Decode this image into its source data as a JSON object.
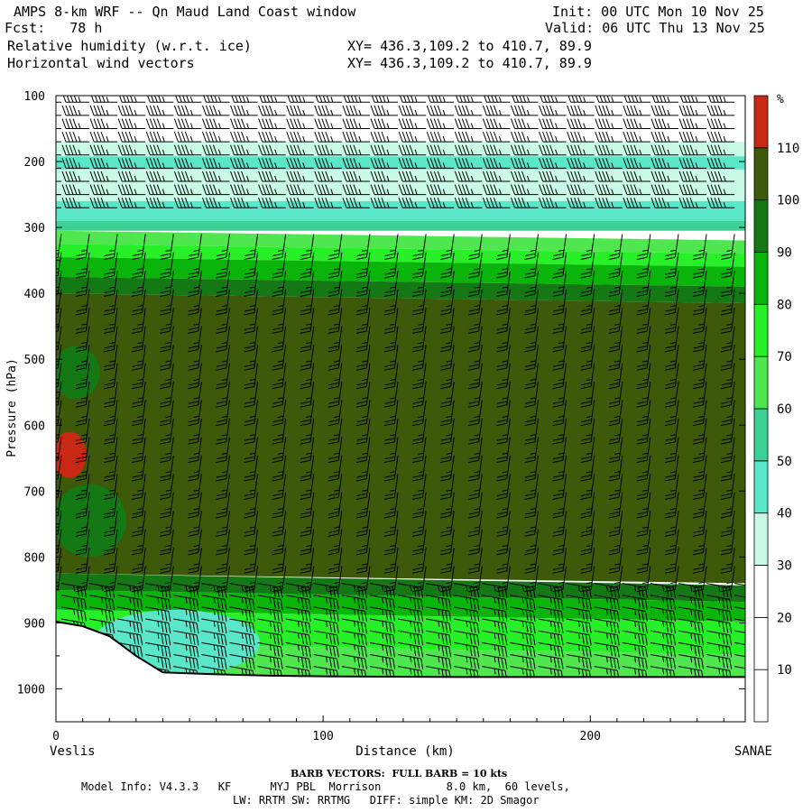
{
  "header": {
    "title": "AMPS 8-km WRF -- Qn Maud Land Coast window",
    "forecast": "Fcst:   78 h",
    "field_1": "Relative humidity (w.r.t. ice)",
    "field_2": "Horizontal wind vectors",
    "init": "Init: 00 UTC Mon 10 Nov 25",
    "valid": "Valid: 06 UTC Thu 13 Nov 25",
    "xy_1": "XY= 436.3,109.2 to 410.7, 89.9",
    "xy_2": "XY= 436.3,109.2 to 410.7, 89.9"
  },
  "footer": {
    "barb_note": "BARB VECTORS:  FULL BARB = 10 kts",
    "model_info": "Model Info: V4.3.3   KF      MYJ PBL  Morrison          8.0 km,  60 levels,",
    "physics": "LW: RRTM SW: RRTMG   DIFF: simple KM: 2D Smagor"
  },
  "colors": {
    "rh_10_20": "#ffffff",
    "rh_20_30": "#ffffff",
    "rh_30_40": "#c8fae6",
    "rh_40_50": "#5ae6c8",
    "rh_50_60": "#3cd296",
    "rh_60_70": "#50e650",
    "rh_70_80": "#28f028",
    "rh_80_90": "#0ab40a",
    "rh_90_100": "#147814",
    "rh_100_110": "#3c5a0a",
    "rh_above_110": "#c82814",
    "terrain": "#ffffff",
    "axis": "#000000"
  },
  "chart_data": {
    "type": "heatmap",
    "title": "Relative humidity (w.r.t. ice) cross-section with horizontal wind barbs",
    "xlabel": "Distance (km)",
    "ylabel": "Pressure (hPa)",
    "x_range": [
      0,
      258
    ],
    "y_range": [
      100,
      1050
    ],
    "y_inverted": true,
    "x_ticks": [
      0,
      100,
      200
    ],
    "y_ticks": [
      100,
      200,
      300,
      400,
      500,
      600,
      700,
      800,
      900,
      1000
    ],
    "x_endpoint_labels": [
      "Veslis",
      "SANAE"
    ],
    "colorbar_unit": "%",
    "colorbar_levels": [
      10,
      20,
      30,
      40,
      50,
      60,
      70,
      80,
      90,
      100,
      110
    ],
    "colorbar_bands": [
      {
        "lower": 0,
        "upper": 10,
        "color": "#ffffff"
      },
      {
        "lower": 10,
        "upper": 20,
        "color": "#ffffff"
      },
      {
        "lower": 20,
        "upper": 30,
        "color": "#ffffff"
      },
      {
        "lower": 30,
        "upper": 40,
        "color": "#c8fae6"
      },
      {
        "lower": 40,
        "upper": 50,
        "color": "#5ae6c8"
      },
      {
        "lower": 50,
        "upper": 60,
        "color": "#3cd296"
      },
      {
        "lower": 60,
        "upper": 70,
        "color": "#50e650"
      },
      {
        "lower": 70,
        "upper": 80,
        "color": "#28f028"
      },
      {
        "lower": 80,
        "upper": 90,
        "color": "#0ab40a"
      },
      {
        "lower": 90,
        "upper": 100,
        "color": "#147814"
      },
      {
        "lower": 100,
        "upper": 110,
        "color": "#3c5a0a"
      },
      {
        "lower": 110,
        "upper": 120,
        "color": "#c82814"
      }
    ],
    "rh_layers": [
      {
        "p_top": 100,
        "p_bot": 170,
        "rh_range": "20-30",
        "color": "#ffffff"
      },
      {
        "p_top": 170,
        "p_bot": 192,
        "rh_range": "30-40",
        "color": "#c8fae6"
      },
      {
        "p_top": 192,
        "p_bot": 212,
        "rh_range": "40-50",
        "color": "#5ae6c8"
      },
      {
        "p_top": 212,
        "p_bot": 260,
        "rh_range": "30-40",
        "color": "#c8fae6"
      },
      {
        "p_top": 260,
        "p_bot": 290,
        "rh_range": "40-50",
        "color": "#5ae6c8"
      },
      {
        "p_top": 290,
        "p_bot": 305,
        "rh_range": "50-60",
        "color": "#3cd296"
      },
      {
        "p_top": 305,
        "p_bot": 325,
        "rh_range": "60-70",
        "color": "#50e650"
      },
      {
        "p_top": 325,
        "p_bot": 345,
        "rh_range": "70-80",
        "color": "#28f028"
      },
      {
        "p_top": 345,
        "p_bot": 375,
        "rh_range": "80-90",
        "color": "#0ab40a"
      },
      {
        "p_top": 375,
        "p_bot": 400,
        "rh_range": "90-100",
        "color": "#147814"
      },
      {
        "p_top": 400,
        "p_bot": 825,
        "rh_range": "100-110",
        "color": "#3c5a0a"
      },
      {
        "p_top": 825,
        "p_bot": 850,
        "rh_range": "90-100",
        "color": "#147814"
      },
      {
        "p_top": 850,
        "p_bot": 880,
        "rh_range": "80-90",
        "color": "#0ab40a"
      },
      {
        "p_top": 880,
        "p_bot": 930,
        "rh_range": "70-80",
        "color": "#28f028"
      },
      {
        "p_top": 930,
        "p_bot": 985,
        "rh_range": "60-70",
        "color": "#50e650"
      }
    ],
    "rh_features": [
      {
        "name": "supersaturated pocket",
        "x_range": [
          0,
          10
        ],
        "p_range": [
          610,
          680
        ],
        "rh_range": ">110",
        "color": "#c82814"
      },
      {
        "name": "moist pocket",
        "x_range": [
          0,
          15
        ],
        "p_range": [
          480,
          560
        ],
        "rh_range": "90-100",
        "color": "#147814"
      },
      {
        "name": "low-level moist plume",
        "x_range": [
          0,
          25
        ],
        "p_range": [
          690,
          800
        ],
        "rh_range": "90-100",
        "color": "#147814"
      },
      {
        "name": "near-surface dry pocket",
        "x_range": [
          15,
          75
        ],
        "p_range": [
          880,
          980
        ],
        "rh_range": "40-50",
        "color": "#5ae6c8"
      }
    ],
    "terrain_surface": {
      "x_km": [
        0,
        10,
        20,
        30,
        40,
        60,
        80,
        100,
        150,
        200,
        258
      ],
      "surface_pressure_hpa": [
        898,
        905,
        920,
        950,
        975,
        978,
        980,
        981,
        982,
        982,
        982
      ]
    },
    "wind_barbs": {
      "upper_regime": {
        "p_range": [
          100,
          280
        ],
        "direction": "westerly",
        "speed_kts": 45
      },
      "mid_regime": {
        "p_range": [
          300,
          820
        ],
        "direction": "southerly",
        "speed_kts": 25
      },
      "low_regime": {
        "p_range": [
          830,
          980
        ],
        "direction": "easterly",
        "speed_kts": 35
      }
    }
  }
}
